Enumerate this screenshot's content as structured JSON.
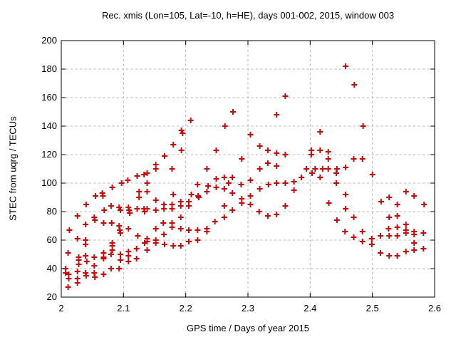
{
  "chart_data": {
    "type": "scatter",
    "title": "Rec. xmis (Lon=105, Lat=-10, h=HE), days 001-002, 2015, window 003",
    "xlabel": "GPS time / Days of year 2015",
    "ylabel": "STEC from uqrg / TECUs",
    "xlim": [
      2.0,
      2.6
    ],
    "ylim": [
      20,
      200
    ],
    "xticks": [
      2.0,
      2.1,
      2.2,
      2.3,
      2.4,
      2.5,
      2.6
    ],
    "xtick_labels": [
      "2",
      "2.1",
      "2.2",
      "2.3",
      "2.4",
      "2.5",
      "2.6"
    ],
    "yticks": [
      20,
      40,
      60,
      80,
      100,
      120,
      140,
      160,
      180,
      200
    ],
    "ytick_labels": [
      "20",
      "40",
      "60",
      "80",
      "100",
      "120",
      "140",
      "160",
      "180",
      "200"
    ],
    "grid": true,
    "legend": "none",
    "marker": "plus",
    "marker_color": "#e00000",
    "series_name": "STEC",
    "points": [
      [
        2.097,
        100
      ],
      [
        2.107,
        102
      ],
      [
        2.122,
        105
      ],
      [
        2.133,
        106
      ],
      [
        2.082,
        97
      ],
      [
        2.125,
        94
      ],
      [
        2.125,
        90
      ],
      [
        2.055,
        91
      ],
      [
        2.066,
        93
      ],
      [
        2.067,
        91
      ],
      [
        2.04,
        85
      ],
      [
        2.08,
        84
      ],
      [
        2.069,
        81
      ],
      [
        2.093,
        83
      ],
      [
        2.095,
        81
      ],
      [
        2.108,
        83
      ],
      [
        2.109,
        81
      ],
      [
        2.11,
        79
      ],
      [
        2.122,
        82
      ],
      [
        2.133,
        82
      ],
      [
        2.134,
        80
      ],
      [
        2.026,
        77
      ],
      [
        2.053,
        76
      ],
      [
        2.054,
        74
      ],
      [
        2.039,
        71
      ],
      [
        2.068,
        72
      ],
      [
        2.081,
        72
      ],
      [
        2.093,
        70
      ],
      [
        2.013,
        67
      ],
      [
        2.094,
        67
      ],
      [
        2.095,
        65
      ],
      [
        2.108,
        68
      ],
      [
        2.123,
        63
      ],
      [
        2.026,
        61
      ],
      [
        2.039,
        60
      ],
      [
        2.039,
        57
      ],
      [
        2.082,
        58
      ],
      [
        2.082,
        56
      ],
      [
        2.082,
        53
      ],
      [
        2.134,
        58
      ],
      [
        2.011,
        51
      ],
      [
        2.028,
        48
      ],
      [
        2.039,
        49
      ],
      [
        2.053,
        48
      ],
      [
        2.068,
        51
      ],
      [
        2.068,
        48
      ],
      [
        2.068,
        47
      ],
      [
        2.08,
        50
      ],
      [
        2.095,
        50
      ],
      [
        2.108,
        52
      ],
      [
        2.108,
        49
      ],
      [
        2.121,
        54
      ],
      [
        2.121,
        47
      ],
      [
        2.028,
        46
      ],
      [
        2.028,
        43
      ],
      [
        2.041,
        45
      ],
      [
        2.053,
        42
      ],
      [
        2.095,
        46
      ],
      [
        2.108,
        45
      ],
      [
        2.08,
        40
      ],
      [
        2.093,
        40
      ],
      [
        2.007,
        40
      ],
      [
        2.007,
        37
      ],
      [
        2.012,
        36
      ],
      [
        2.026,
        38
      ],
      [
        2.039,
        37
      ],
      [
        2.04,
        35
      ],
      [
        2.053,
        37
      ],
      [
        2.054,
        34
      ],
      [
        2.068,
        36
      ],
      [
        2.012,
        33
      ],
      [
        2.026,
        33
      ],
      [
        2.026,
        30
      ],
      [
        2.011,
        27
      ],
      [
        2.208,
        144
      ],
      [
        2.263,
        140
      ],
      [
        2.193,
        137
      ],
      [
        2.195,
        135
      ],
      [
        2.18,
        127
      ],
      [
        2.193,
        123
      ],
      [
        2.249,
        123
      ],
      [
        2.166,
        119
      ],
      [
        2.152,
        113
      ],
      [
        2.152,
        110
      ],
      [
        2.178,
        110
      ],
      [
        2.234,
        110
      ],
      [
        2.138,
        107
      ],
      [
        2.138,
        100
      ],
      [
        2.249,
        103
      ],
      [
        2.262,
        104
      ],
      [
        2.219,
        99
      ],
      [
        2.236,
        98
      ],
      [
        2.249,
        97
      ],
      [
        2.262,
        96
      ],
      [
        2.138,
        94
      ],
      [
        2.18,
        92
      ],
      [
        2.209,
        92
      ],
      [
        2.22,
        91
      ],
      [
        2.221,
        90
      ],
      [
        2.234,
        94
      ],
      [
        2.152,
        88
      ],
      [
        2.192,
        87
      ],
      [
        2.192,
        84
      ],
      [
        2.205,
        87
      ],
      [
        2.205,
        84
      ],
      [
        2.165,
        85
      ],
      [
        2.165,
        82
      ],
      [
        2.178,
        85
      ],
      [
        2.178,
        82
      ],
      [
        2.152,
        81
      ],
      [
        2.138,
        82
      ],
      [
        2.262,
        84
      ],
      [
        2.192,
        76
      ],
      [
        2.262,
        76
      ],
      [
        2.247,
        73
      ],
      [
        2.164,
        72
      ],
      [
        2.178,
        72
      ],
      [
        2.178,
        69
      ],
      [
        2.152,
        68
      ],
      [
        2.192,
        68
      ],
      [
        2.205,
        67
      ],
      [
        2.219,
        67
      ],
      [
        2.234,
        68
      ],
      [
        2.234,
        66
      ],
      [
        2.165,
        64
      ],
      [
        2.138,
        61
      ],
      [
        2.138,
        59
      ],
      [
        2.152,
        60
      ],
      [
        2.152,
        58
      ],
      [
        2.166,
        57
      ],
      [
        2.18,
        56
      ],
      [
        2.192,
        56
      ],
      [
        2.205,
        59
      ],
      [
        2.219,
        60
      ],
      [
        2.138,
        53
      ],
      [
        2.36,
        161
      ],
      [
        2.276,
        150
      ],
      [
        2.346,
        148
      ],
      [
        2.304,
        134
      ],
      [
        2.319,
        126
      ],
      [
        2.332,
        123
      ],
      [
        2.346,
        121
      ],
      [
        2.36,
        120
      ],
      [
        2.402,
        123
      ],
      [
        2.402,
        120
      ],
      [
        2.29,
        117
      ],
      [
        2.332,
        114
      ],
      [
        2.346,
        112
      ],
      [
        2.319,
        110
      ],
      [
        2.394,
        110
      ],
      [
        2.403,
        107
      ],
      [
        2.386,
        104
      ],
      [
        2.275,
        104
      ],
      [
        2.269,
        100
      ],
      [
        2.289,
        99
      ],
      [
        2.304,
        102
      ],
      [
        2.333,
        99
      ],
      [
        2.346,
        100
      ],
      [
        2.36,
        100
      ],
      [
        2.374,
        101
      ],
      [
        2.374,
        95
      ],
      [
        2.319,
        96
      ],
      [
        2.275,
        93
      ],
      [
        2.304,
        91
      ],
      [
        2.29,
        89
      ],
      [
        2.29,
        86
      ],
      [
        2.304,
        85
      ],
      [
        2.36,
        84
      ],
      [
        2.275,
        81
      ],
      [
        2.318,
        80
      ],
      [
        2.332,
        77
      ],
      [
        2.346,
        78
      ],
      [
        2.457,
        182
      ],
      [
        2.471,
        169
      ],
      [
        2.485,
        140
      ],
      [
        2.416,
        136
      ],
      [
        2.416,
        123
      ],
      [
        2.429,
        122
      ],
      [
        2.429,
        117
      ],
      [
        2.47,
        117
      ],
      [
        2.484,
        117
      ],
      [
        2.408,
        110
      ],
      [
        2.42,
        110
      ],
      [
        2.429,
        110
      ],
      [
        2.443,
        110
      ],
      [
        2.457,
        111
      ],
      [
        2.442,
        107
      ],
      [
        2.416,
        104
      ],
      [
        2.5,
        106
      ],
      [
        2.442,
        100
      ],
      [
        2.457,
        92
      ],
      [
        2.43,
        86
      ],
      [
        2.457,
        82
      ],
      [
        2.514,
        87
      ],
      [
        2.527,
        90
      ],
      [
        2.54,
        85
      ],
      [
        2.443,
        74
      ],
      [
        2.47,
        76
      ],
      [
        2.527,
        76
      ],
      [
        2.54,
        77
      ],
      [
        2.54,
        69
      ],
      [
        2.456,
        66
      ],
      [
        2.484,
        66
      ],
      [
        2.47,
        62
      ],
      [
        2.484,
        59
      ],
      [
        2.499,
        61
      ],
      [
        2.499,
        57
      ],
      [
        2.513,
        63
      ],
      [
        2.527,
        63
      ],
      [
        2.54,
        63
      ],
      [
        2.513,
        51
      ],
      [
        2.527,
        49
      ],
      [
        2.54,
        49
      ],
      [
        2.554,
        94
      ],
      [
        2.567,
        91
      ],
      [
        2.583,
        85
      ],
      [
        2.554,
        71
      ],
      [
        2.526,
        68
      ],
      [
        2.554,
        67
      ],
      [
        2.554,
        65
      ],
      [
        2.567,
        66
      ],
      [
        2.567,
        64
      ],
      [
        2.582,
        65
      ],
      [
        2.567,
        58
      ],
      [
        2.554,
        52
      ],
      [
        2.567,
        53
      ],
      [
        2.582,
        54
      ]
    ]
  }
}
